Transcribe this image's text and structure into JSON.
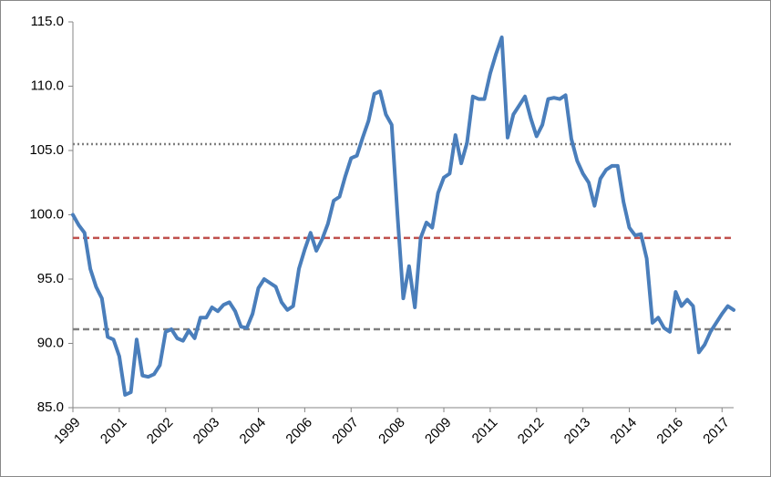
{
  "chart_data": {
    "type": "line",
    "categories": [
      "1999",
      null,
      null,
      null,
      null,
      null,
      null,
      null,
      "2001",
      null,
      null,
      null,
      null,
      null,
      null,
      null,
      "2002",
      null,
      null,
      null,
      null,
      null,
      null,
      null,
      "2003",
      null,
      null,
      null,
      null,
      null,
      null,
      null,
      "2004",
      null,
      null,
      null,
      null,
      null,
      null,
      null,
      "2006",
      null,
      null,
      null,
      null,
      null,
      null,
      null,
      "2007",
      null,
      null,
      null,
      null,
      null,
      null,
      null,
      "2008",
      null,
      null,
      null,
      null,
      null,
      null,
      null,
      "2009",
      null,
      null,
      null,
      null,
      null,
      null,
      null,
      "2011",
      null,
      null,
      null,
      null,
      null,
      null,
      null,
      "2012",
      null,
      null,
      null,
      null,
      null,
      null,
      null,
      "2013",
      null,
      null,
      null,
      null,
      null,
      null,
      null,
      "2014",
      null,
      null,
      null,
      null,
      null,
      null,
      null,
      "2016",
      null,
      null,
      null,
      null,
      null,
      null,
      null,
      "2017",
      null,
      null
    ],
    "series": [
      {
        "color": "#4a7ebb",
        "values": [
          100.0,
          99.2,
          98.6,
          95.8,
          94.4,
          93.5,
          90.5,
          90.3,
          89.0,
          86.0,
          86.2,
          90.3,
          87.5,
          87.4,
          87.6,
          88.3,
          90.9,
          91.1,
          90.4,
          90.2,
          91.0,
          90.4,
          92.0,
          92.0,
          92.8,
          92.5,
          93.0,
          93.2,
          92.5,
          91.3,
          91.2,
          92.3,
          94.3,
          95.0,
          94.7,
          94.4,
          93.2,
          92.6,
          92.9,
          95.8,
          97.3,
          98.6,
          97.2,
          98.1,
          99.3,
          101.1,
          101.4,
          103.0,
          104.4,
          104.6,
          106.0,
          107.3,
          109.4,
          109.6,
          107.8,
          107.0,
          100.0,
          93.5,
          96.0,
          92.8,
          98.2,
          99.4,
          99.0,
          101.7,
          102.9,
          103.2,
          106.2,
          104.0,
          105.6,
          109.2,
          109.0,
          109.0,
          111.0,
          112.5,
          113.8,
          106.0,
          107.8,
          108.5,
          109.2,
          107.5,
          106.1,
          107.0,
          109.0,
          109.1,
          109.0,
          109.3,
          105.9,
          104.2,
          103.2,
          102.5,
          100.7,
          102.8,
          103.5,
          103.8,
          103.8,
          101.0,
          99.0,
          98.4,
          98.5,
          96.6,
          91.6,
          92.0,
          91.2,
          90.9,
          94.0,
          92.9,
          93.4,
          92.9,
          89.3,
          89.9,
          90.9,
          91.6,
          92.3,
          92.9,
          92.6
        ]
      }
    ],
    "reference_lines": [
      {
        "value": 105.5,
        "color": "#7f7f7f",
        "style": "dotted"
      },
      {
        "value": 98.2,
        "color": "#c0504d",
        "style": "dashed"
      },
      {
        "value": 91.1,
        "color": "#7f7f7f",
        "style": "dashed"
      }
    ],
    "ylim": [
      85,
      115
    ],
    "yticks": [
      {
        "value": 85,
        "label": "85.0"
      },
      {
        "value": 90,
        "label": "90.0"
      },
      {
        "value": 95,
        "label": "95.0"
      },
      {
        "value": 100,
        "label": "100.0"
      },
      {
        "value": 105,
        "label": "105.0"
      },
      {
        "value": 110,
        "label": "110.0"
      },
      {
        "value": 115,
        "label": "115.0"
      }
    ],
    "grid": false
  }
}
